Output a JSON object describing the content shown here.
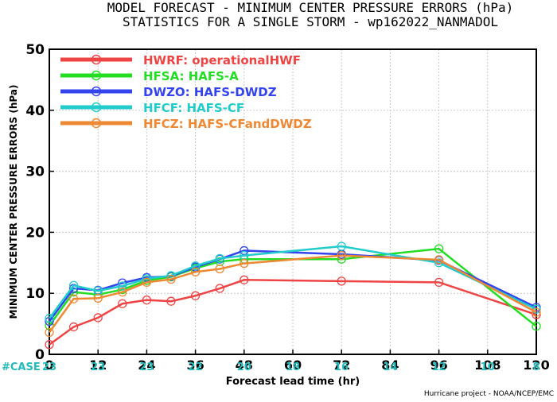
{
  "chart_data": {
    "type": "line",
    "title_line1": "MODEL FORECAST - MINIMUM CENTER PRESSURE ERRORS (hPa)",
    "title_line2": "STATISTICS FOR A SINGLE STORM - wp162022_NANMADOL",
    "xlabel": "Forecast lead time (hr)",
    "ylabel": "MINIMUM CENTER PRESSURE ERRORS (hPa)",
    "xlim": [
      0,
      120
    ],
    "ylim": [
      0,
      50
    ],
    "xticks": [
      0,
      12,
      24,
      36,
      48,
      60,
      72,
      84,
      96,
      108,
      120
    ],
    "yticks": [
      0,
      10,
      20,
      30,
      40,
      50
    ],
    "case_label": "#CASE",
    "case_counts": [
      "23",
      "23",
      "23",
      "22",
      "20",
      "18",
      "16",
      "14",
      "12",
      "10",
      "8"
    ],
    "credit": "Hurricane project - NOAA/NCEP/EMC",
    "legend_placement": "top-left",
    "series": [
      {
        "name": "HWRF: operationalHWF",
        "color": "#ee4444",
        "x": [
          0,
          6,
          12,
          18,
          24,
          30,
          36,
          42,
          48,
          72,
          96,
          120
        ],
        "y": [
          1.6,
          4.5,
          6.0,
          8.3,
          8.9,
          8.7,
          9.6,
          10.8,
          12.2,
          12.0,
          11.8,
          6.5
        ]
      },
      {
        "name": "HFSA: HAFS-A",
        "color": "#22dd22",
        "x": [
          0,
          6,
          12,
          18,
          24,
          30,
          36,
          42,
          48,
          72,
          96,
          120
        ],
        "y": [
          4.7,
          10.2,
          9.8,
          10.6,
          12.1,
          12.7,
          14.1,
          15.2,
          15.6,
          15.6,
          17.3,
          4.6
        ]
      },
      {
        "name": "DWZO: HAFS-DWDZ",
        "color": "#3344ee",
        "x": [
          0,
          6,
          12,
          18,
          24,
          30,
          36,
          42,
          48,
          72,
          96,
          120
        ],
        "y": [
          5.4,
          10.8,
          10.5,
          11.7,
          12.6,
          12.8,
          14.3,
          15.6,
          17.0,
          16.4,
          15.4,
          7.7
        ]
      },
      {
        "name": "HFCF: HAFS-CF",
        "color": "#22cccc",
        "x": [
          0,
          6,
          12,
          18,
          24,
          30,
          36,
          42,
          48,
          72,
          96,
          120
        ],
        "y": [
          5.9,
          11.3,
          10.4,
          11.2,
          12.4,
          12.9,
          14.5,
          15.7,
          16.2,
          17.7,
          15.0,
          7.4
        ]
      },
      {
        "name": "HFCZ: HAFS-CFandDWDZ",
        "color": "#ee8833",
        "x": [
          0,
          6,
          12,
          18,
          24,
          30,
          36,
          42,
          48,
          72,
          96,
          120
        ],
        "y": [
          3.6,
          9.1,
          9.2,
          10.2,
          11.8,
          12.3,
          13.5,
          14.0,
          14.9,
          16.2,
          15.5,
          6.9
        ]
      }
    ]
  }
}
